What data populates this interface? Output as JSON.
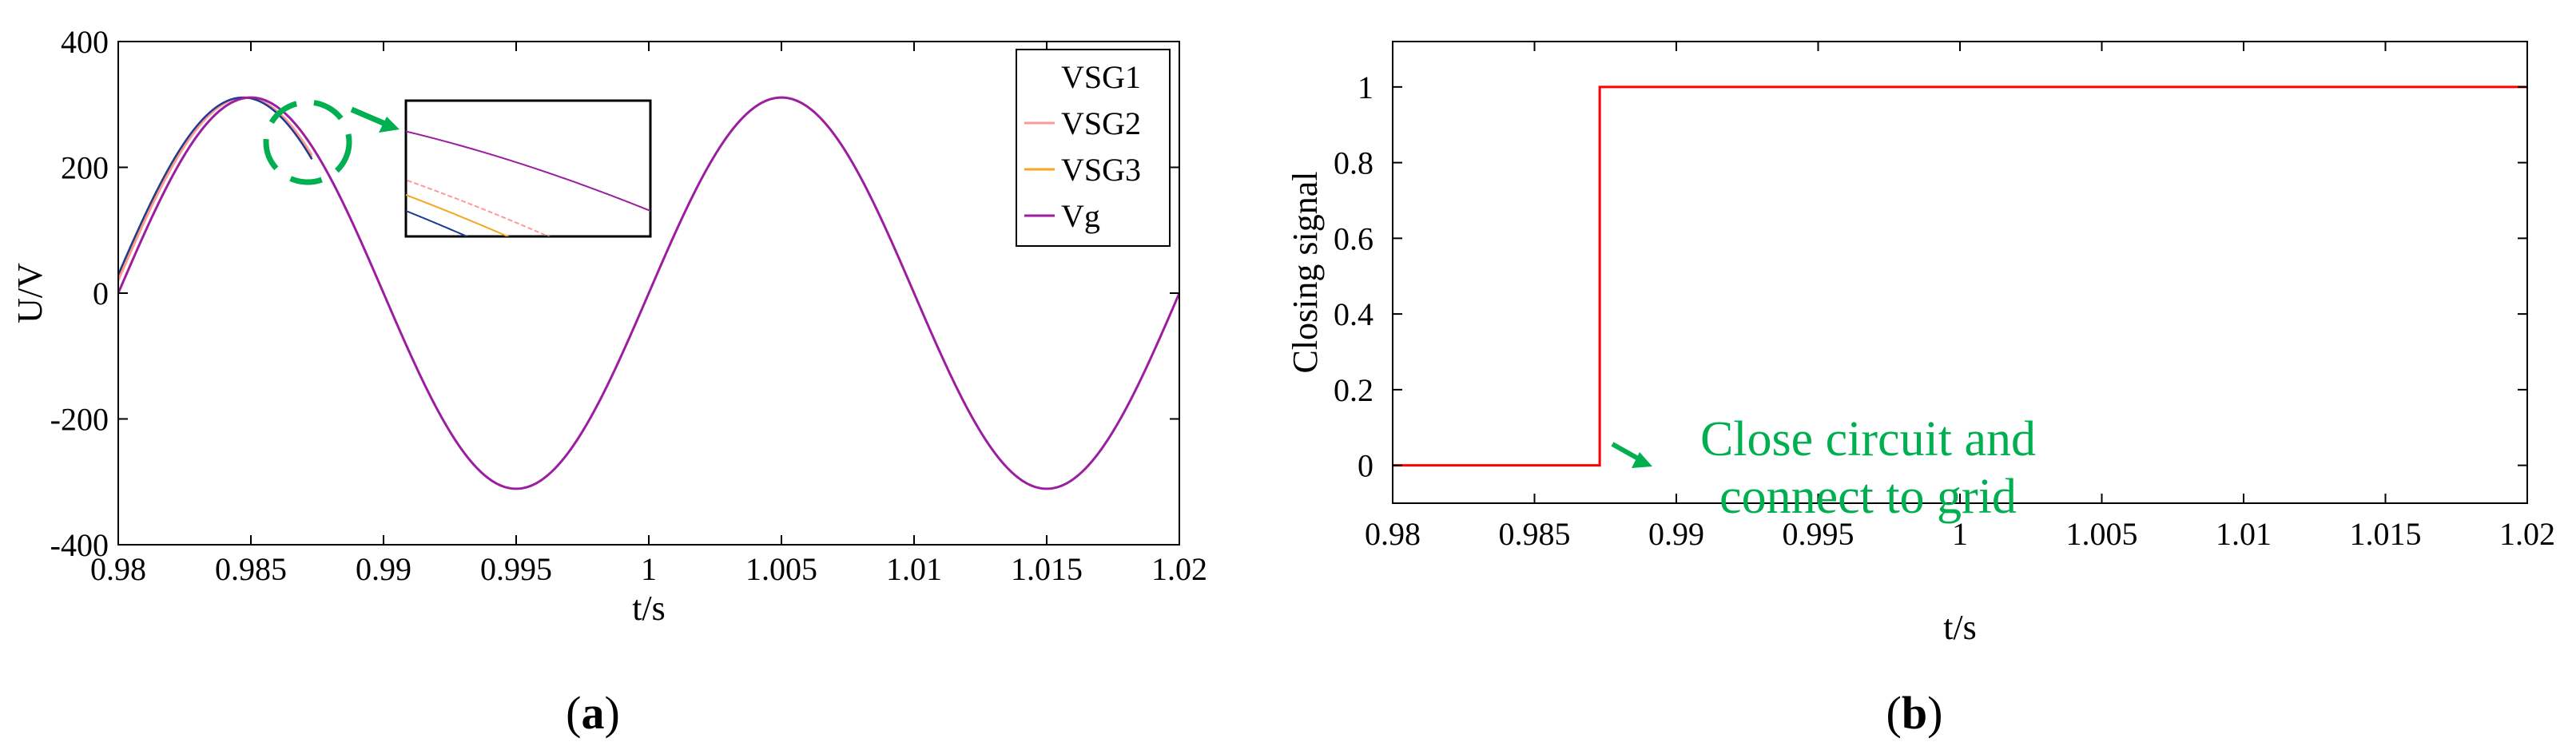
{
  "panels": [
    {
      "id": "a",
      "panel_label_open": "(",
      "panel_label_letter": "a",
      "panel_label_close": ")",
      "legend_entries": [
        {
          "label": "VSG1",
          "color": "#ffffff"
        },
        {
          "label": "VSG2",
          "color": "#ff9999"
        },
        {
          "label": "VSG3",
          "color": "#f5a623"
        },
        {
          "label": "Vg",
          "color": "#9c1ea0"
        }
      ]
    },
    {
      "id": "b",
      "panel_label_open": "(",
      "panel_label_letter": "b",
      "panel_label_close": ")",
      "annotation_line1": "Close circuit and",
      "annotation_line2": "connect to grid"
    }
  ],
  "colors": {
    "annotation": "#00b050",
    "signal": "#ff0000",
    "grid_voltage": "#9c1ea0",
    "vsg1": "#1f3a93",
    "vsg2": "#ff9999",
    "vsg3": "#f5a623"
  },
  "chart_data": [
    {
      "type": "line",
      "xlabel": "t/s",
      "ylabel": "U/V",
      "xlim": [
        0.98,
        1.02
      ],
      "ylim": [
        -400,
        400
      ],
      "xticks": [
        0.98,
        0.985,
        0.99,
        0.995,
        1,
        1.005,
        1.01,
        1.015,
        1.02
      ],
      "xtick_labels": [
        "0.98",
        "0.985",
        "0.99",
        "0.995",
        "1",
        "1.005",
        "1.01",
        "1.015",
        "1.02"
      ],
      "yticks": [
        -400,
        -200,
        0,
        200,
        400
      ],
      "ytick_labels": [
        "-400",
        "-200",
        "0",
        "200",
        "400"
      ],
      "legend": "top-right",
      "series": [
        {
          "name": "VSG1",
          "amplitude": 311,
          "frequency_hz": 50,
          "phase_lead_s": 0.0003
        },
        {
          "name": "VSG2",
          "amplitude": 311,
          "frequency_hz": 50,
          "phase_lead_s": 0.0002
        },
        {
          "name": "VSG3",
          "amplitude": 311,
          "frequency_hz": 50,
          "phase_lead_s": 0.00025
        },
        {
          "name": "Vg",
          "amplitude": 311,
          "frequency_hz": 50,
          "phase_lead_s": 0
        }
      ],
      "sync_time": 0.9873,
      "zoom_inset": {
        "center_t": 0.9873,
        "center_u": 240
      }
    },
    {
      "type": "line",
      "xlabel": "t/s",
      "ylabel": "Closing signal",
      "xlim": [
        0.98,
        1.02
      ],
      "ylim": [
        -0.1,
        1.12
      ],
      "xticks": [
        0.98,
        0.985,
        0.99,
        0.995,
        1,
        1.005,
        1.01,
        1.015,
        1.02
      ],
      "xtick_labels": [
        "0.98",
        "0.985",
        "0.99",
        "0.995",
        "1",
        "1.005",
        "1.01",
        "1.015",
        "1.02"
      ],
      "yticks": [
        0,
        0.2,
        0.4,
        0.6,
        0.8,
        1
      ],
      "ytick_labels": [
        "0",
        "0.2",
        "0.4",
        "0.6",
        "0.8",
        "1"
      ],
      "series": [
        {
          "name": "Closing signal",
          "step_time": 0.9873,
          "value_before": 0,
          "value_after": 1
        }
      ],
      "annotation": "Close circuit and connect to grid"
    }
  ]
}
